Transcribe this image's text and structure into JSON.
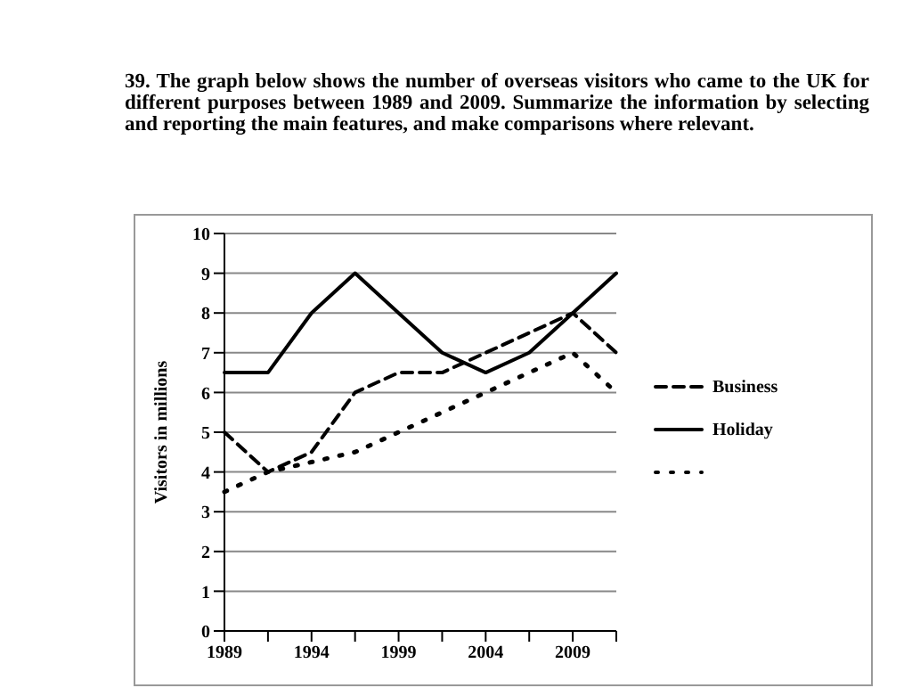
{
  "chart_data": {
    "type": "line",
    "title": "39. The graph below shows the number of overseas visitors who came to the UK for different purposes between 1989 and 2009. Summarize the information by selecting and reporting the main features, and make comparisons where relevant.",
    "ylabel": "Visitors in millions",
    "categories": [
      "1989",
      null,
      "1994",
      null,
      "1999",
      null,
      "2004",
      null,
      "2009",
      null
    ],
    "series": [
      {
        "name": "Business",
        "color": "#000000",
        "line_style": "dashed",
        "values": [
          5,
          4,
          4.5,
          6,
          6.5,
          6.5,
          7,
          7.5,
          8,
          7
        ]
      },
      {
        "name": "Holiday",
        "color": "#000000",
        "line_style": "solid",
        "values": [
          6.5,
          6.5,
          8,
          9,
          8,
          7,
          6.5,
          7,
          8,
          9
        ]
      },
      {
        "color": "#000000",
        "line_style": "dotted",
        "values": [
          3.5,
          4,
          4.25,
          4.5,
          5,
          5.5,
          6,
          6.5,
          7,
          6
        ]
      }
    ],
    "ylim": [
      0,
      10
    ],
    "yticks": [
      0,
      1,
      2,
      3,
      4,
      5,
      6,
      7,
      8,
      9,
      10
    ],
    "grid": "y",
    "legend": "right",
    "marker": "none"
  }
}
